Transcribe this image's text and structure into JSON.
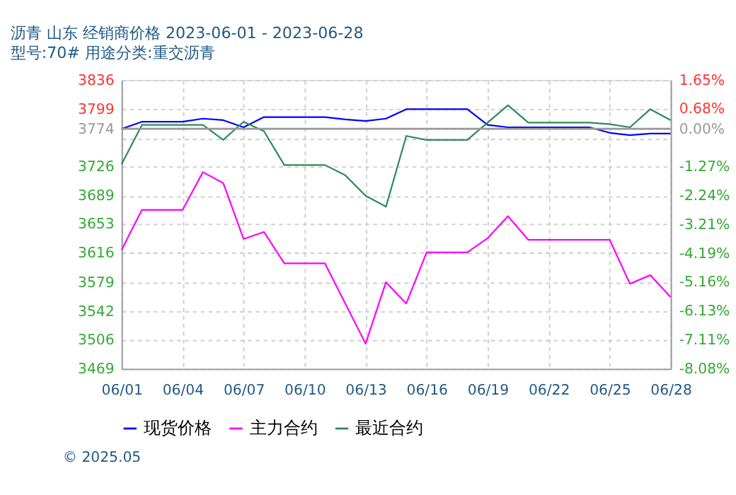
{
  "chart_data": {
    "type": "line",
    "title": "沥青  山东  经销商价格  2023-06-01 - 2023-06-28",
    "subtitle": "型号:70#  用途分类:重交沥青",
    "x": [
      "2023-06-01",
      "2023-06-02",
      "2023-06-03",
      "2023-06-04",
      "2023-06-05",
      "2023-06-06",
      "2023-06-07",
      "2023-06-08",
      "2023-06-09",
      "2023-06-10",
      "2023-06-11",
      "2023-06-12",
      "2023-06-13",
      "2023-06-14",
      "2023-06-15",
      "2023-06-16",
      "2023-06-17",
      "2023-06-18",
      "2023-06-19",
      "2023-06-20",
      "2023-06-21",
      "2023-06-22",
      "2023-06-23",
      "2023-06-24",
      "2023-06-25",
      "2023-06-26",
      "2023-06-27",
      "2023-06-28"
    ],
    "series": [
      {
        "name": "现货价格",
        "color": "#0000ff",
        "values": [
          3774,
          3783,
          3783,
          3783,
          3787,
          3785,
          3776,
          3789,
          3789,
          3789,
          3789,
          3786,
          3784,
          3787,
          3799,
          3799,
          3799,
          3799,
          3779,
          3776,
          3776,
          3776,
          3776,
          3776,
          3769,
          3766,
          3768,
          3768
        ]
      },
      {
        "name": "主力合约",
        "color": "#ff00ff",
        "values": [
          3620,
          3671,
          3671,
          3671,
          3719,
          3705,
          3634,
          3643,
          3603,
          3603,
          3603,
          3552,
          3501,
          3579,
          3552,
          3617,
          3617,
          3617,
          3635,
          3663,
          3633,
          3633,
          3633,
          3633,
          3633,
          3577,
          3588,
          3560
        ]
      },
      {
        "name": "最近合约",
        "color": "#2e8b57",
        "values": [
          3729,
          3779,
          3779,
          3779,
          3779,
          3760,
          3783,
          3771,
          3728,
          3728,
          3728,
          3715,
          3689,
          3675,
          3765,
          3760,
          3760,
          3760,
          3782,
          3804,
          3782,
          3782,
          3782,
          3782,
          3780,
          3776,
          3799,
          3785
        ]
      }
    ],
    "xlim": [
      "2023-06-01",
      "2023-06-28"
    ],
    "xticks": [
      {
        "value": "2023-06-01",
        "label": "06/01"
      },
      {
        "value": "2023-06-04",
        "label": "06/04"
      },
      {
        "value": "2023-06-07",
        "label": "06/07"
      },
      {
        "value": "2023-06-10",
        "label": "06/10"
      },
      {
        "value": "2023-06-13",
        "label": "06/13"
      },
      {
        "value": "2023-06-16",
        "label": "06/16"
      },
      {
        "value": "2023-06-19",
        "label": "06/19"
      },
      {
        "value": "2023-06-22",
        "label": "06/22"
      },
      {
        "value": "2023-06-25",
        "label": "06/25"
      },
      {
        "value": "2023-06-28",
        "label": "06/28"
      }
    ],
    "ylim": [
      3469,
      3836
    ],
    "yticks": [
      3469,
      3506,
      3542,
      3579,
      3616,
      3653,
      3689,
      3726,
      {
        "value": 3762,
        "label": null
      },
      3774,
      3799,
      3836
    ],
    "y2lim": [
      -8.08,
      1.65
    ],
    "y2ticks": [
      {
        "value": -8.08,
        "label": "-8.08%"
      },
      {
        "value": -7.11,
        "label": "-7.11%"
      },
      {
        "value": -6.13,
        "label": "-6.13%"
      },
      {
        "value": -5.16,
        "label": "-5.16%"
      },
      {
        "value": -4.19,
        "label": "-4.19%"
      },
      {
        "value": -3.21,
        "label": "-3.21%"
      },
      {
        "value": -2.24,
        "label": "-2.24%"
      },
      {
        "value": -1.27,
        "label": "-1.27%"
      },
      {
        "value": 0,
        "label": "0.00%"
      },
      {
        "value": 0.68,
        "label": "0.68%"
      },
      {
        "value": 1.65,
        "label": "1.65%"
      }
    ],
    "ref_lines": [
      {
        "axis": "y",
        "value": 3774,
        "color": "#999999",
        "line_style": "solid"
      }
    ],
    "grid": true,
    "legend": "bottom",
    "marker": "none",
    "line_style": "solid",
    "annotations": [
      "© 2025.05"
    ]
  }
}
